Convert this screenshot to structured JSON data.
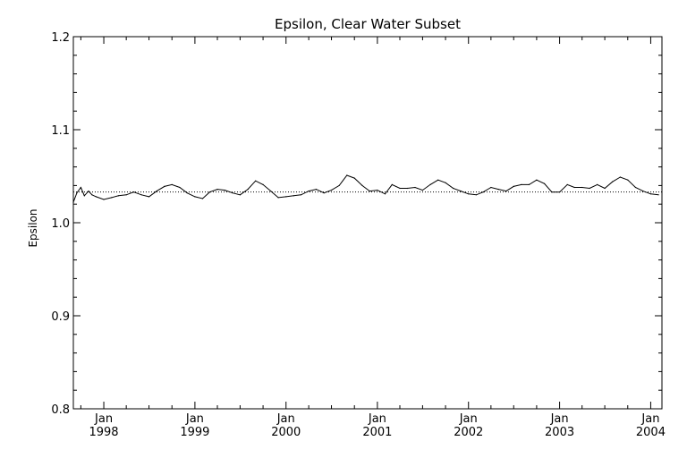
{
  "chart_data": {
    "type": "line",
    "title": "Epsilon, Clear Water Subset",
    "xlabel": "",
    "ylabel": "Epsilon",
    "xlim": [
      "1997-09-01",
      "2004-02-15"
    ],
    "ylim": [
      0.8,
      1.2
    ],
    "y_ticks": [
      0.8,
      0.9,
      1.0,
      1.1,
      1.2
    ],
    "y_tick_labels": [
      "0.8",
      "0.9",
      "1.0",
      "1.1",
      "1.2"
    ],
    "x_ticks": [
      {
        "date": "1998-01-01",
        "month": "Jan",
        "year": "1998"
      },
      {
        "date": "1999-01-01",
        "month": "Jan",
        "year": "1999"
      },
      {
        "date": "2000-01-01",
        "month": "Jan",
        "year": "2000"
      },
      {
        "date": "2001-01-01",
        "month": "Jan",
        "year": "2001"
      },
      {
        "date": "2002-01-01",
        "month": "Jan",
        "year": "2002"
      },
      {
        "date": "2003-01-01",
        "month": "Jan",
        "year": "2003"
      },
      {
        "date": "2004-01-01",
        "month": "Jan",
        "year": "2004"
      }
    ],
    "minor_ticks_per_year": 4,
    "reference_line": {
      "y": 1.033,
      "style": "dotted"
    },
    "grid": false,
    "series": [
      {
        "x": [
          "1997-09-01",
          "1997-09-15",
          "1997-10-01",
          "1997-10-15",
          "1997-11-01",
          "1997-11-15",
          "1997-12-01",
          "1998-01-01",
          "1998-02-01",
          "1998-03-01",
          "1998-04-01",
          "1998-05-01",
          "1998-06-01",
          "1998-07-01",
          "1998-08-01",
          "1998-09-01",
          "1998-10-01",
          "1998-11-01",
          "1998-12-01",
          "1999-01-01",
          "1999-02-01",
          "1999-03-01",
          "1999-04-01",
          "1999-05-01",
          "1999-06-01",
          "1999-07-01",
          "1999-08-01",
          "1999-09-01",
          "1999-10-01",
          "1999-11-01",
          "1999-12-01",
          "2000-01-01",
          "2000-02-01",
          "2000-03-01",
          "2000-04-01",
          "2000-05-01",
          "2000-06-01",
          "2000-07-01",
          "2000-08-01",
          "2000-09-01",
          "2000-10-01",
          "2000-11-01",
          "2000-12-01",
          "2001-01-01",
          "2001-02-01",
          "2001-03-01",
          "2001-04-01",
          "2001-05-01",
          "2001-06-01",
          "2001-07-01",
          "2001-08-01",
          "2001-09-01",
          "2001-10-01",
          "2001-11-01",
          "2001-12-01",
          "2002-01-01",
          "2002-02-01",
          "2002-03-01",
          "2002-04-01",
          "2002-05-01",
          "2002-06-01",
          "2002-07-01",
          "2002-08-01",
          "2002-09-01",
          "2002-10-01",
          "2002-11-01",
          "2002-12-01",
          "2003-01-01",
          "2003-02-01",
          "2003-03-01",
          "2003-04-01",
          "2003-05-01",
          "2003-06-01",
          "2003-07-01",
          "2003-08-01",
          "2003-09-01",
          "2003-10-01",
          "2003-11-01",
          "2003-12-01",
          "2004-01-01",
          "2004-02-01"
        ],
        "y": [
          1.022,
          1.032,
          1.038,
          1.029,
          1.034,
          1.03,
          1.028,
          1.025,
          1.027,
          1.029,
          1.03,
          1.033,
          1.03,
          1.028,
          1.034,
          1.039,
          1.041,
          1.038,
          1.032,
          1.028,
          1.026,
          1.033,
          1.036,
          1.035,
          1.032,
          1.03,
          1.036,
          1.045,
          1.041,
          1.034,
          1.027,
          1.028,
          1.029,
          1.03,
          1.034,
          1.036,
          1.032,
          1.035,
          1.04,
          1.051,
          1.048,
          1.04,
          1.034,
          1.035,
          1.031,
          1.041,
          1.037,
          1.037,
          1.038,
          1.035,
          1.041,
          1.046,
          1.043,
          1.037,
          1.034,
          1.031,
          1.03,
          1.033,
          1.038,
          1.036,
          1.034,
          1.039,
          1.041,
          1.041,
          1.046,
          1.042,
          1.033,
          1.033,
          1.041,
          1.038,
          1.038,
          1.037,
          1.041,
          1.037,
          1.044,
          1.049,
          1.046,
          1.038,
          1.034,
          1.031,
          1.03
        ]
      }
    ]
  }
}
